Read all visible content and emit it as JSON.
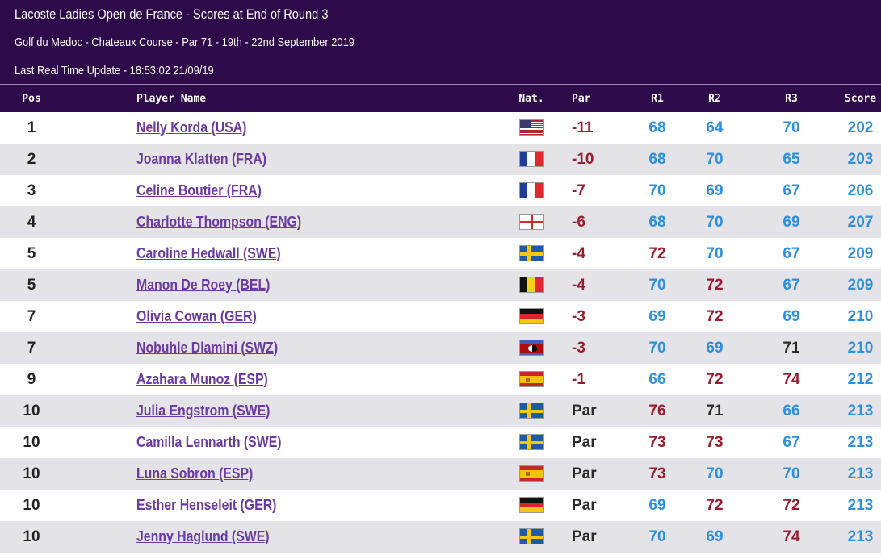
{
  "header": {
    "title": "Lacoste Ladies Open de France - Scores at End of Round 3",
    "venue": "Golf du Medoc - Chateaux Course - Par 71 - 19th - 22nd September 2019",
    "update": "Last Real Time Update - 18:53:02 21/09/19"
  },
  "columns": {
    "pos": "Pos",
    "name": "Player Name",
    "nat": "Nat.",
    "par": "Par",
    "r1": "R1",
    "r2": "R2",
    "r3": "R3",
    "score": "Score"
  },
  "colors": {
    "over_par": "#9b1c2e",
    "under_par": "#2e8fdc",
    "even_par": "#2b2b2b",
    "header_bg": "#2e0a4b",
    "link": "#6a3aa0"
  },
  "rows": [
    {
      "pos": "1",
      "name": "Nelly Korda (USA)",
      "flag": "usa-flag-icon",
      "par": "-11",
      "r1": "68",
      "r2": "64",
      "r3": "70",
      "score": "202"
    },
    {
      "pos": "2",
      "name": "Joanna Klatten (FRA)",
      "flag": "france-flag-icon",
      "par": "-10",
      "r1": "68",
      "r2": "70",
      "r3": "65",
      "score": "203"
    },
    {
      "pos": "3",
      "name": "Celine Boutier (FRA)",
      "flag": "france-flag-icon",
      "par": "-7",
      "r1": "70",
      "r2": "69",
      "r3": "67",
      "score": "206"
    },
    {
      "pos": "4",
      "name": "Charlotte Thompson (ENG)",
      "flag": "england-flag-icon",
      "par": "-6",
      "r1": "68",
      "r2": "70",
      "r3": "69",
      "score": "207"
    },
    {
      "pos": "5",
      "name": "Caroline Hedwall (SWE)",
      "flag": "sweden-flag-icon",
      "par": "-4",
      "r1": "72",
      "r2": "70",
      "r3": "67",
      "score": "209"
    },
    {
      "pos": "5",
      "name": "Manon De Roey (BEL)",
      "flag": "belgium-flag-icon",
      "par": "-4",
      "r1": "70",
      "r2": "72",
      "r3": "67",
      "score": "209"
    },
    {
      "pos": "7",
      "name": "Olivia Cowan (GER)",
      "flag": "germany-flag-icon",
      "par": "-3",
      "r1": "69",
      "r2": "72",
      "r3": "69",
      "score": "210"
    },
    {
      "pos": "7",
      "name": "Nobuhle Dlamini (SWZ)",
      "flag": "eswatini-flag-icon",
      "par": "-3",
      "r1": "70",
      "r2": "69",
      "r3": "71",
      "score": "210"
    },
    {
      "pos": "9",
      "name": "Azahara Munoz (ESP)",
      "flag": "spain-flag-icon",
      "par": "-1",
      "r1": "66",
      "r2": "72",
      "r3": "74",
      "score": "212"
    },
    {
      "pos": "10",
      "name": "Julia Engstrom (SWE)",
      "flag": "sweden-flag-icon",
      "par": "Par",
      "r1": "76",
      "r2": "71",
      "r3": "66",
      "score": "213"
    },
    {
      "pos": "10",
      "name": "Camilla Lennarth (SWE)",
      "flag": "sweden-flag-icon",
      "par": "Par",
      "r1": "73",
      "r2": "73",
      "r3": "67",
      "score": "213"
    },
    {
      "pos": "10",
      "name": "Luna Sobron (ESP)",
      "flag": "spain-flag-icon",
      "par": "Par",
      "r1": "73",
      "r2": "70",
      "r3": "70",
      "score": "213"
    },
    {
      "pos": "10",
      "name": "Esther Henseleit (GER)",
      "flag": "germany-flag-icon",
      "par": "Par",
      "r1": "69",
      "r2": "72",
      "r3": "72",
      "score": "213"
    },
    {
      "pos": "10",
      "name": "Jenny Haglund (SWE)",
      "flag": "sweden-flag-icon",
      "par": "Par",
      "r1": "70",
      "r2": "69",
      "r3": "74",
      "score": "213"
    }
  ]
}
